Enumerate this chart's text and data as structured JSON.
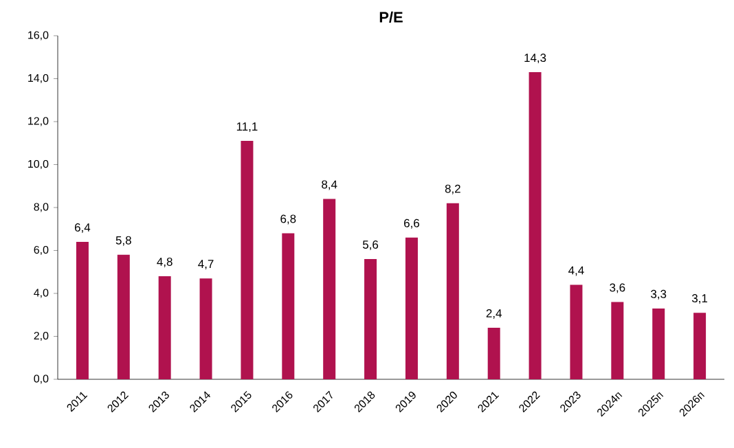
{
  "chart_data": {
    "type": "bar",
    "title": "P/E",
    "categories": [
      "2011",
      "2012",
      "2013",
      "2014",
      "2015",
      "2016",
      "2017",
      "2018",
      "2019",
      "2020",
      "2021",
      "2022",
      "2023",
      "2024п",
      "2025п",
      "2026п"
    ],
    "values": [
      6.4,
      5.8,
      4.8,
      4.7,
      11.1,
      6.8,
      8.4,
      5.6,
      6.6,
      8.2,
      2.4,
      14.3,
      4.4,
      3.6,
      3.3,
      3.1
    ],
    "value_labels": [
      "6,4",
      "5,8",
      "4,8",
      "4,7",
      "11,1",
      "6,8",
      "8,4",
      "5,6",
      "6,6",
      "8,2",
      "2,4",
      "14,3",
      "4,4",
      "3,6",
      "3,3",
      "3,1"
    ],
    "color": "#b0124e",
    "ylim": [
      0,
      16
    ],
    "yticks": [
      {
        "value": 0,
        "label": "0,0"
      },
      {
        "value": 2,
        "label": "2,0"
      },
      {
        "value": 4,
        "label": "4,0"
      },
      {
        "value": 6,
        "label": "6,0"
      },
      {
        "value": 8,
        "label": "8,0"
      },
      {
        "value": 10,
        "label": "10,0"
      },
      {
        "value": 12,
        "label": "12,0"
      },
      {
        "value": 14,
        "label": "14,0"
      },
      {
        "value": 16,
        "label": "16,0"
      }
    ],
    "grid": false
  }
}
